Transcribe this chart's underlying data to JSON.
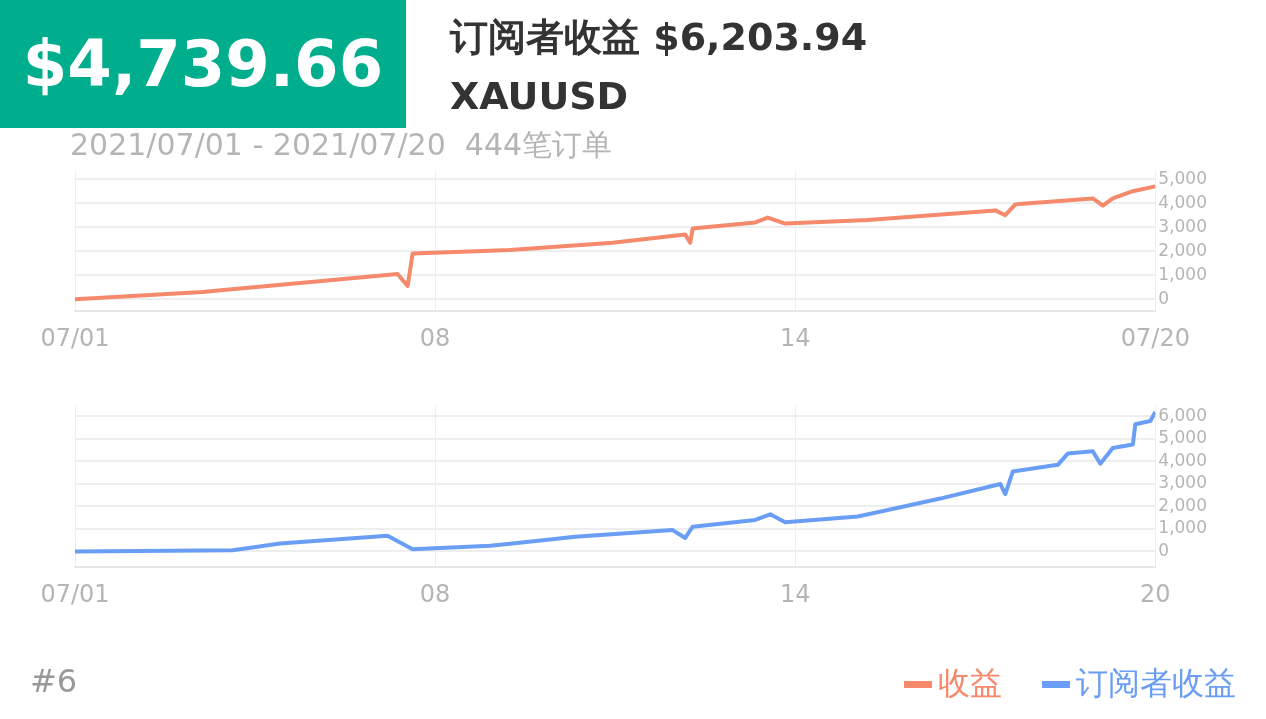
{
  "chart_data": [
    {
      "type": "other",
      "title": "$4,739.66",
      "subtitle": "订阅者收益 $6,203.94",
      "annotations": [
        "XAUUSD",
        "#6"
      ],
      "color": "#00ae8e"
    },
    {
      "type": "line",
      "annotations": [
        "2021/07/01 - 2021/07/20  444笔订单"
      ],
      "legend": "bottom right",
      "grid": true,
      "marker": "none",
      "line_style": "solid",
      "xlim": [
        "2021-07-02",
        "2021-07-20"
      ],
      "xticks": [
        {
          "value": "2021-07-02",
          "label": "07/01"
        },
        {
          "value": "2021-07-08",
          "label": "08"
        },
        {
          "value": "2021-07-14",
          "label": "14"
        },
        {
          "value": "2021-07-20",
          "label": "07/20"
        }
      ],
      "ylim": [
        -500,
        5300
      ],
      "yticks": [
        {
          "value": 0,
          "label": "0"
        },
        {
          "value": 1000,
          "label": "1,000"
        },
        {
          "value": 2000,
          "label": "2,000"
        },
        {
          "value": 3000,
          "label": "3,000"
        },
        {
          "value": 4000,
          "label": "4,000"
        },
        {
          "value": 5000,
          "label": "5,000"
        }
      ],
      "series": [
        {
          "name": "收益",
          "color": "#f4896b",
          "x": [
            "2021-07-02T00:00",
            "2021-07-04T03:00",
            "2021-07-07T09:00",
            "2021-07-07T13:00",
            "2021-07-07T15:00",
            "2021-07-09T06:00",
            "2021-07-10T23:00",
            "2021-07-12T04:00",
            "2021-07-12T06:00",
            "2021-07-12T07:00",
            "2021-07-13T08:00",
            "2021-07-13T13:00",
            "2021-07-13T20:00",
            "2021-07-15T05:00",
            "2021-07-17T08:00",
            "2021-07-17T12:00",
            "2021-07-17T16:00",
            "2021-07-18T23:00",
            "2021-07-19T03:00",
            "2021-07-19T07:00",
            "2021-07-19T15:00",
            "2021-07-20T00:00"
          ],
          "values": [
            0,
            300,
            1050,
            550,
            1900,
            2050,
            2350,
            2700,
            2350,
            2950,
            3200,
            3400,
            3150,
            3300,
            3700,
            3500,
            3950,
            4200,
            3900,
            4200,
            4500,
            4700
          ]
        }
      ]
    },
    {
      "type": "line",
      "legend": "bottom right",
      "grid": true,
      "marker": "none",
      "line_style": "solid",
      "xlim": [
        "2021-07-02",
        "2021-07-20"
      ],
      "xticks": [
        {
          "value": "2021-07-02",
          "label": "07/01"
        },
        {
          "value": "2021-07-08",
          "label": "08"
        },
        {
          "value": "2021-07-14",
          "label": "14"
        },
        {
          "value": "2021-07-20",
          "label": "20"
        }
      ],
      "ylim": [
        -700,
        6500
      ],
      "yticks": [
        {
          "value": 0,
          "label": "0"
        },
        {
          "value": 1000,
          "label": "1,000"
        },
        {
          "value": 2000,
          "label": "2,000"
        },
        {
          "value": 3000,
          "label": "3,000"
        },
        {
          "value": 4000,
          "label": "4,000"
        },
        {
          "value": 5000,
          "label": "5,000"
        },
        {
          "value": 6000,
          "label": "6,000"
        }
      ],
      "series": [
        {
          "name": "订阅者收益",
          "color": "#6a9ef5",
          "x": [
            "2021-07-02T00:00",
            "2021-07-04T15:00",
            "2021-07-05T10:00",
            "2021-07-07T05:00",
            "2021-07-07T15:00",
            "2021-07-08T22:00",
            "2021-07-10T08:00",
            "2021-07-11T23:00",
            "2021-07-12T04:00",
            "2021-07-12T07:00",
            "2021-07-13T08:00",
            "2021-07-13T14:00",
            "2021-07-13T20:00",
            "2021-07-15T01:00",
            "2021-07-16T10:00",
            "2021-07-17T10:00",
            "2021-07-17T12:00",
            "2021-07-17T15:00",
            "2021-07-18T09:00",
            "2021-07-18T13:00",
            "2021-07-18T23:00",
            "2021-07-19T02:00",
            "2021-07-19T07:00",
            "2021-07-19T15:00",
            "2021-07-19T16:00",
            "2021-07-19T22:00",
            "2021-07-20T00:00"
          ],
          "values": [
            0,
            50,
            350,
            700,
            100,
            250,
            650,
            950,
            600,
            1100,
            1400,
            1650,
            1300,
            1550,
            2350,
            3000,
            2550,
            3550,
            3850,
            4350,
            4450,
            3900,
            4600,
            4750,
            5650,
            5800,
            6200
          ]
        }
      ]
    }
  ]
}
